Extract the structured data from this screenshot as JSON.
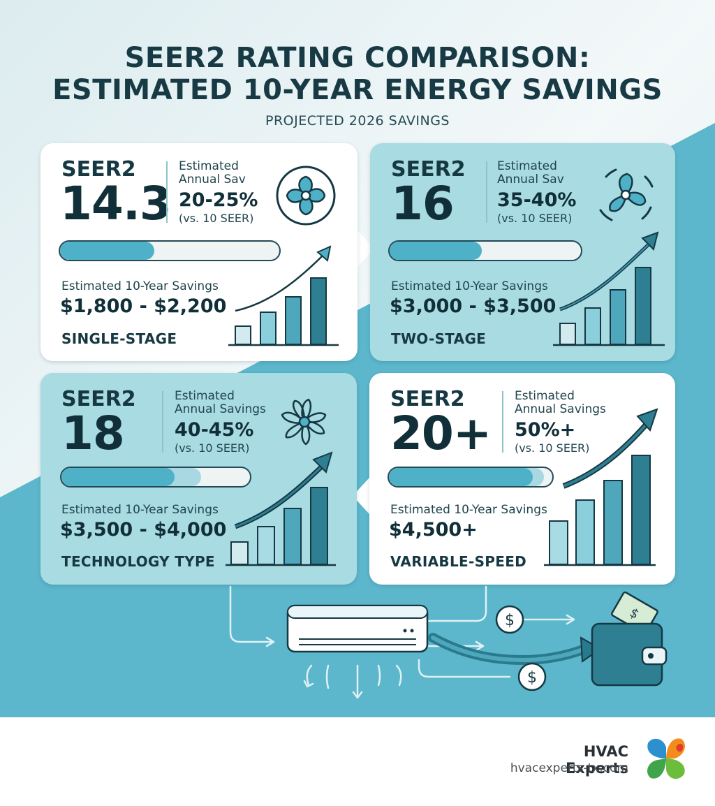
{
  "title_line1": "SEER2 RATING COMPARISON:",
  "title_line2": "ESTIMATED 10-YEAR ENERGY SAVINGS",
  "subtitle": "PROJECTED 2026 SAVINGS",
  "cards": [
    {
      "seer_label": "SEER2",
      "seer_value": "14.3",
      "annual_label_1": "Estimated",
      "annual_label_2": "Annual Sav",
      "annual_pct": "20-25%",
      "annual_ref": "(vs. 10 SEER)",
      "progress": 0.43,
      "ten_year_label": "Estimated 10-Year Savings",
      "ten_year_value": "$1,800 - $2,200",
      "tech": "SINGLE-STAGE",
      "icon": "fan-4-blade-icon"
    },
    {
      "seer_label": "SEER2",
      "seer_value": "16",
      "annual_label_1": "Estimated",
      "annual_label_2": "Annual Sav",
      "annual_pct": "35-40%",
      "annual_ref": "(vs. 10 SEER)",
      "progress": 0.48,
      "ten_year_label": "Estimated 10-Year Savings",
      "ten_year_value": "$3,000 - $3,500",
      "tech": "TWO-STAGE",
      "icon": "fan-motion-icon"
    },
    {
      "seer_label": "SEER2",
      "seer_value": "18",
      "annual_label_1": "Estimated",
      "annual_label_2": "Annual Savings",
      "annual_pct": "40-45%",
      "annual_ref": "(vs. 10 SEER)",
      "progress": 0.6,
      "progress_soft": 0.74,
      "ten_year_label": "Estimated 10-Year Savings",
      "ten_year_value": "$3,500 - $4,000",
      "tech": "TECHNOLOGY TYPE",
      "icon": "fan-multi-blade-icon"
    },
    {
      "seer_label": "SEER2",
      "seer_value": "20+",
      "annual_label_1": "Estimated",
      "annual_label_2": "Annual Savings",
      "annual_pct": "50%+",
      "annual_ref": "(vs. 10 SEER)",
      "progress": 0.88,
      "progress_soft": 0.95,
      "ten_year_label": "Estimated 10-Year Savings",
      "ten_year_value": "$4,500+",
      "tech": "VARIABLE-SPEED",
      "icon": "none"
    }
  ],
  "flow_icons": [
    "air-conditioner-icon",
    "dollar-coin-icon",
    "wallet-icon",
    "arrow-icon"
  ],
  "brand": {
    "name": "HVAC Experts",
    "url": "hvacexperts-tx.com"
  },
  "colors": {
    "accent": "#4fb1c8",
    "dark": "#163843",
    "card_teal": "#a9dbe3",
    "bg_teal": "#5cb7cc"
  }
}
